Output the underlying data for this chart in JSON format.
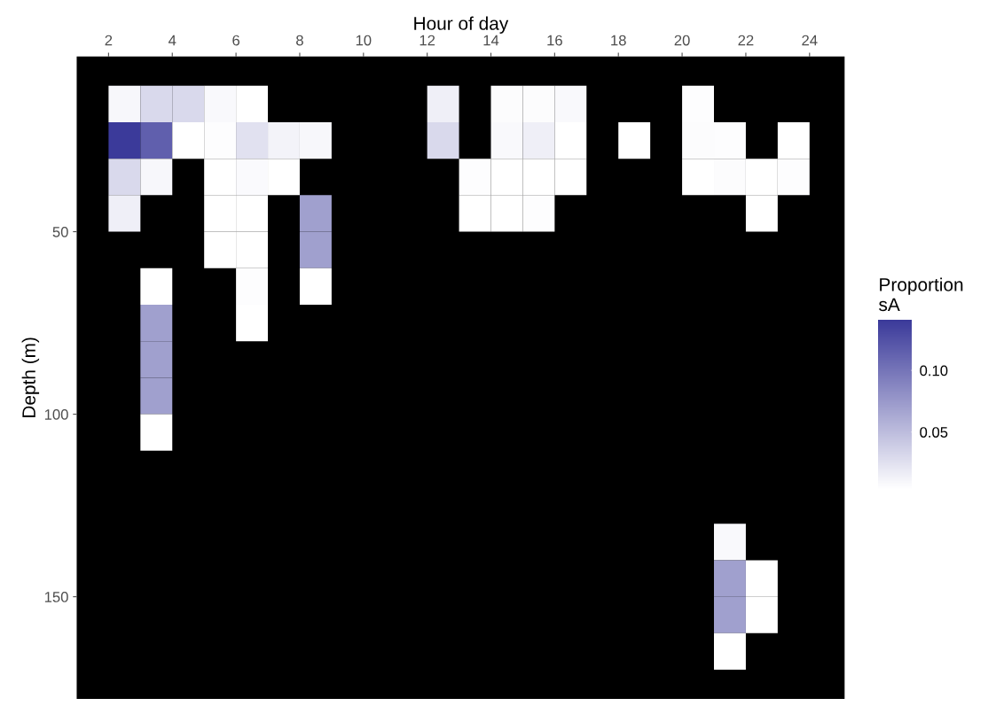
{
  "chart_data": {
    "type": "scatter",
    "xlabel": "Hour of day",
    "ylabel": "Depth (m)",
    "clabel": "Proportion\nsA",
    "marker": "square",
    "x": [
      2.5,
      3.5,
      4.5,
      5.5,
      6.5,
      12.5,
      14.5,
      15.5,
      16.5,
      20.5,
      2.5,
      3.5,
      4.5,
      5.5,
      6.5,
      7.5,
      8.5,
      12.5,
      14.5,
      15.5,
      16.5,
      18.5,
      20.5,
      21.5,
      23.5,
      2.5,
      3.5,
      5.5,
      6.5,
      7.5,
      13.5,
      14.5,
      15.5,
      16.5,
      20.5,
      21.5,
      22.5,
      23.5,
      2.5,
      5.5,
      6.5,
      8.5,
      13.5,
      14.5,
      15.5,
      22.5,
      5.5,
      6.5,
      8.5,
      3.5,
      6.5,
      8.5,
      3.5,
      6.5,
      3.5,
      3.5,
      3.5,
      21.5,
      21.5,
      22.5,
      21.5,
      22.5,
      21.5
    ],
    "values": [
      15,
      15,
      15,
      15,
      15,
      15,
      15,
      15,
      15,
      15,
      25,
      25,
      25,
      25,
      25,
      25,
      25,
      25,
      25,
      25,
      25,
      25,
      25,
      25,
      25,
      35,
      35,
      35,
      35,
      35,
      35,
      35,
      35,
      35,
      35,
      35,
      35,
      35,
      45,
      45,
      45,
      45,
      45,
      45,
      45,
      45,
      55,
      55,
      55,
      65,
      65,
      65,
      75,
      75,
      85,
      95,
      105,
      135,
      145,
      145,
      155,
      155,
      165
    ],
    "cvalues": [
      0.01,
      0.03,
      0.03,
      0.008,
      0.004,
      0.015,
      0.006,
      0.006,
      0.008,
      0.005,
      0.141,
      0.115,
      0.004,
      0.005,
      0.025,
      0.012,
      0.01,
      0.03,
      0.008,
      0.015,
      0.004,
      0.004,
      0.006,
      0.005,
      0.004,
      0.03,
      0.01,
      0.004,
      0.007,
      0.004,
      0.005,
      0.004,
      0.004,
      0.004,
      0.004,
      0.006,
      0.004,
      0.005,
      0.015,
      0.004,
      0.004,
      0.07,
      0.004,
      0.004,
      0.005,
      0.004,
      0.004,
      0.004,
      0.07,
      0.004,
      0.005,
      0.004,
      0.07,
      0.004,
      0.07,
      0.07,
      0.004,
      0.008,
      0.07,
      0.004,
      0.07,
      0.004,
      0.004
    ],
    "clim": [
      0.0036,
      0.141
    ],
    "cticks": [
      {
        "value": 0.05,
        "label": "0.05"
      },
      {
        "value": 0.1,
        "label": "0.10"
      }
    ],
    "xlim": [
      1,
      25.1
    ],
    "xticks": [
      2,
      4,
      6,
      8,
      10,
      12,
      14,
      16,
      18,
      20,
      22,
      24
    ],
    "ylim": [
      178,
      2
    ],
    "yticks": [
      50,
      100,
      150
    ],
    "grid": false
  }
}
